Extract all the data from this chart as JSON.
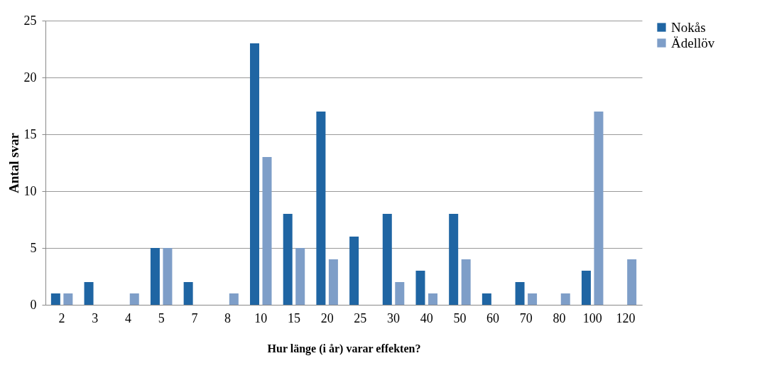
{
  "chart_data": {
    "type": "bar",
    "xlabel": "Hur länge (i år) varar effekten?",
    "ylabel": "Antal svar",
    "categories": [
      "2",
      "3",
      "4",
      "5",
      "7",
      "8",
      "10",
      "15",
      "20",
      "25",
      "30",
      "40",
      "50",
      "60",
      "70",
      "80",
      "100",
      "120"
    ],
    "series": [
      {
        "name": "Nokås",
        "color": "#1f65a3",
        "values": [
          1,
          2,
          0,
          5,
          2,
          0,
          23,
          8,
          17,
          6,
          8,
          3,
          8,
          1,
          2,
          0,
          3,
          0
        ]
      },
      {
        "name": "Ädellöv",
        "color": "#7e9ec8",
        "values": [
          1,
          0,
          1,
          5,
          0,
          1,
          13,
          5,
          4,
          0,
          2,
          1,
          4,
          0,
          1,
          1,
          17,
          4
        ]
      }
    ],
    "ylim": [
      0,
      25
    ],
    "yticks": [
      0,
      5,
      10,
      15,
      20,
      25
    ],
    "grid": "y",
    "legend": "right"
  }
}
